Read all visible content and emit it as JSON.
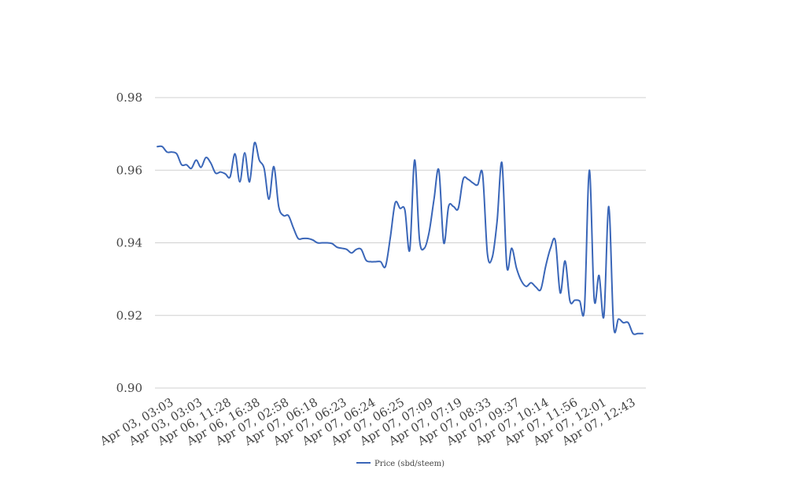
{
  "chart_data": {
    "type": "line",
    "title": "",
    "xlabel": "",
    "ylabel": "",
    "ylim": [
      0.9,
      0.98
    ],
    "yticks": [
      "0.98",
      "0.96",
      "0.94",
      "0.92",
      "0.90"
    ],
    "grid": "horizontal",
    "legend_position": "bottom",
    "series_color": "#3a66b8",
    "grid_color": "#d0d0d0",
    "xtick_labels": [
      "Apr 03, 03:03",
      "Apr 03, 03:03",
      "Apr 06, 11:28",
      "Apr 06, 16:38",
      "Apr 07, 02:58",
      "Apr 07, 06:18",
      "Apr 07, 06:23",
      "Apr 07, 06:24",
      "Apr 07, 06:25",
      "Apr 07, 07:09",
      "Apr 07, 07:19",
      "Apr 07, 08:33",
      "Apr 07, 09:37",
      "Apr 07, 10:14",
      "Apr 07, 11:56",
      "Apr 07, 12:01",
      "Apr 07, 12:43"
    ],
    "series": [
      {
        "name": "Price (sbd/steem)",
        "values": [
          0.9665,
          0.9665,
          0.965,
          0.965,
          0.9645,
          0.9615,
          0.9615,
          0.9605,
          0.9628,
          0.9608,
          0.9635,
          0.962,
          0.9592,
          0.9595,
          0.959,
          0.9582,
          0.9645,
          0.9568,
          0.9648,
          0.9568,
          0.9675,
          0.9628,
          0.9605,
          0.952,
          0.961,
          0.95,
          0.9475,
          0.9475,
          0.9442,
          0.9412,
          0.9412,
          0.9412,
          0.9408,
          0.94,
          0.94,
          0.94,
          0.9398,
          0.9388,
          0.9385,
          0.9382,
          0.9372,
          0.9382,
          0.9382,
          0.9352,
          0.9348,
          0.9348,
          0.9348,
          0.9335,
          0.9415,
          0.951,
          0.9495,
          0.949,
          0.938,
          0.9628,
          0.941,
          0.9385,
          0.943,
          0.952,
          0.96,
          0.94,
          0.95,
          0.95,
          0.9495,
          0.9575,
          0.9575,
          0.9565,
          0.956,
          0.959,
          0.937,
          0.936,
          0.946,
          0.962,
          0.9335,
          0.9385,
          0.933,
          0.9295,
          0.928,
          0.929,
          0.9278,
          0.9272,
          0.9335,
          0.9385,
          0.9405,
          0.9262,
          0.935,
          0.924,
          0.9242,
          0.924,
          0.9222,
          0.96,
          0.9245,
          0.931,
          0.9198,
          0.95,
          0.9172,
          0.919,
          0.918,
          0.918,
          0.915,
          0.915,
          0.915
        ]
      }
    ]
  }
}
